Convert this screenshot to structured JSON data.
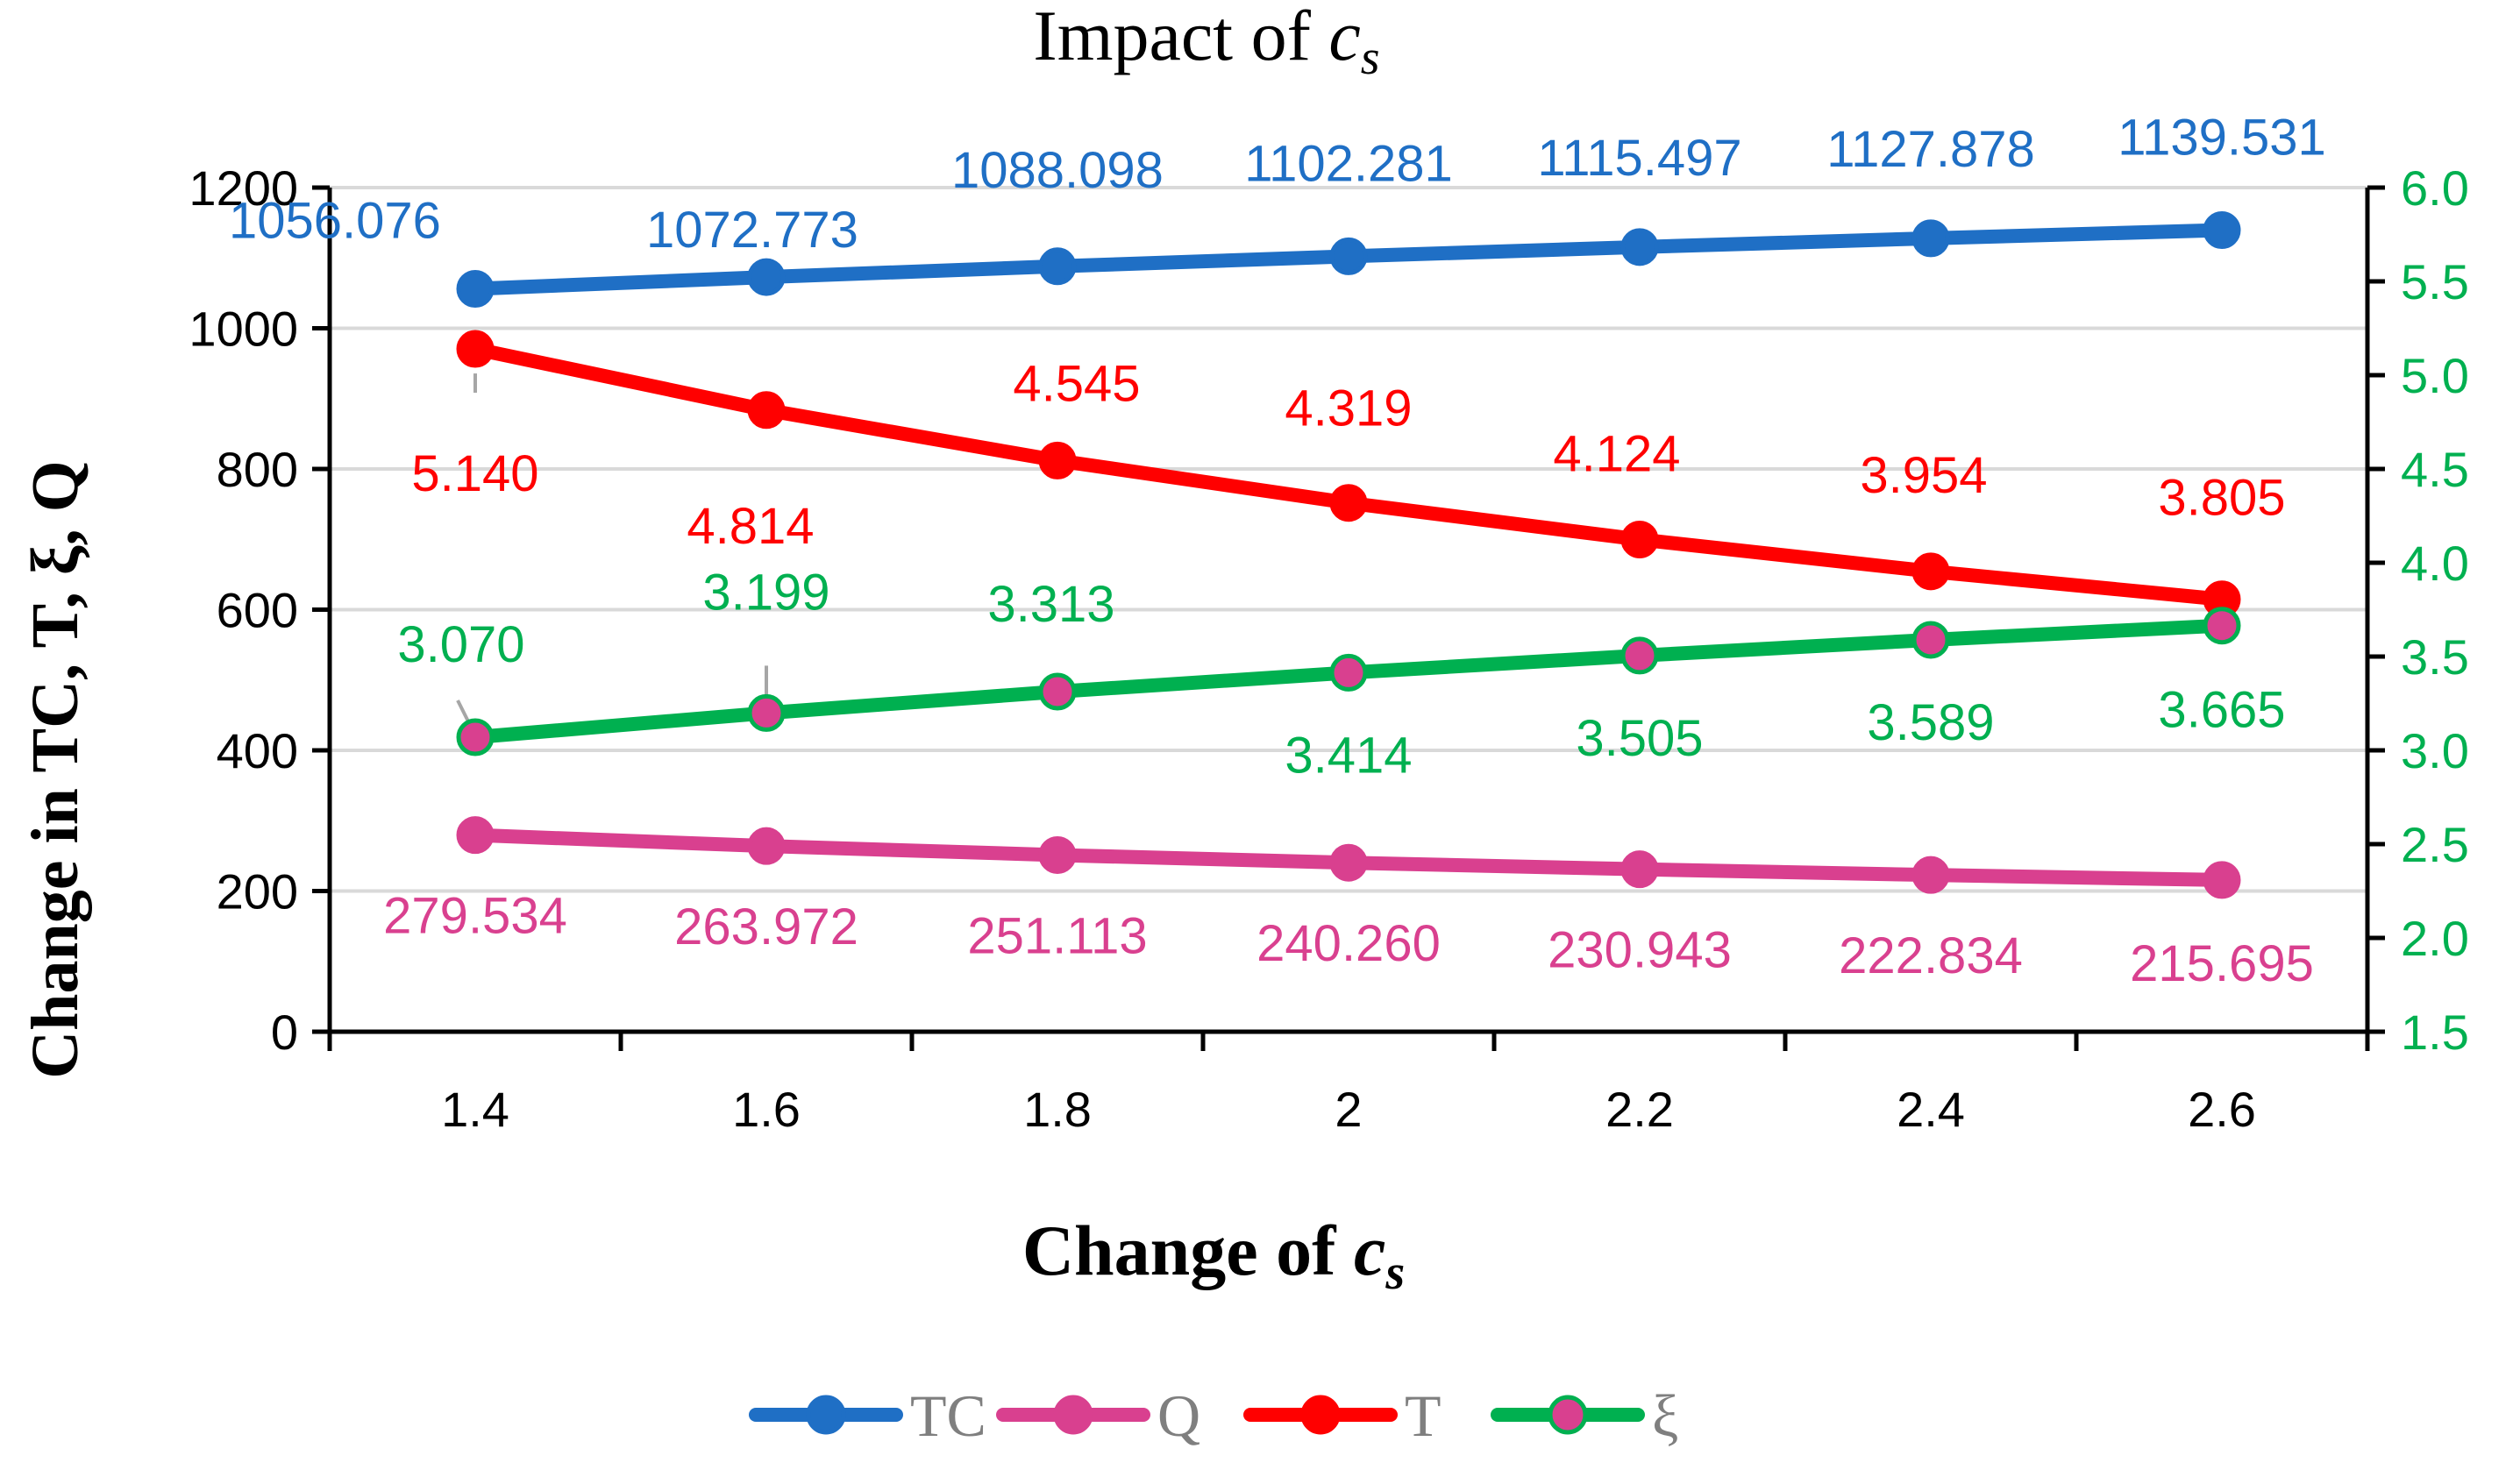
{
  "chart_data": {
    "type": "line",
    "title_main": "Impact of ",
    "title_var": "c",
    "title_sub": "s",
    "xlabel_main": "Change of ",
    "xlabel_var": "c",
    "xlabel_sub": "s",
    "ylabel": "Change in TC, T, ξ, Q",
    "categories": [
      "1.4",
      "1.6",
      "1.8",
      "2",
      "2.2",
      "2.4",
      "2.6"
    ],
    "y_left": {
      "min": 0,
      "max": 1200,
      "step": 200,
      "ticks": [
        "0",
        "200",
        "400",
        "600",
        "800",
        "1000",
        "1200"
      ]
    },
    "y_right": {
      "min": 1.5,
      "max": 6.0,
      "step": 0.5,
      "ticks": [
        "1.5",
        "2.0",
        "2.5",
        "3.0",
        "3.5",
        "4.0",
        "4.5",
        "5.0",
        "5.5",
        "6.0"
      ]
    },
    "grid": true,
    "legend_position": "bottom",
    "series": [
      {
        "name": "TC",
        "axis": "left",
        "color": "#1f6fc5",
        "marker_fill": "#1f6fc5",
        "values": [
          1056.076,
          1072.773,
          1088.098,
          1102.281,
          1115.497,
          1127.878,
          1139.531
        ],
        "labels": [
          "1056.076",
          "1072.773",
          "1088.098",
          "1102.281",
          "1115.497",
          "1127.878",
          "1139.531"
        ]
      },
      {
        "name": "Q",
        "axis": "left",
        "color": "#d9408f",
        "marker_fill": "#d9408f",
        "values": [
          279.534,
          263.972,
          251.113,
          240.26,
          230.943,
          222.834,
          215.695
        ],
        "labels": [
          "279.534",
          "263.972",
          "251.113",
          "240.260",
          "230.943",
          "222.834",
          "215.695"
        ]
      },
      {
        "name": "T",
        "axis": "right",
        "color": "#ff0000",
        "marker_fill": "#ff0000",
        "values": [
          5.14,
          4.814,
          4.545,
          4.319,
          4.124,
          3.954,
          3.805
        ],
        "labels": [
          "5.140",
          "4.814",
          "4.545",
          "4.319",
          "4.124",
          "3.954",
          "3.805"
        ]
      },
      {
        "name": "ξ",
        "axis": "right",
        "color": "#00b050",
        "marker_fill": "#d9408f",
        "values": [
          3.07,
          3.199,
          3.313,
          3.414,
          3.505,
          3.589,
          3.665
        ],
        "labels": [
          "3.070",
          "3.199",
          "3.313",
          "3.414",
          "3.505",
          "3.589",
          "3.665"
        ]
      }
    ]
  }
}
